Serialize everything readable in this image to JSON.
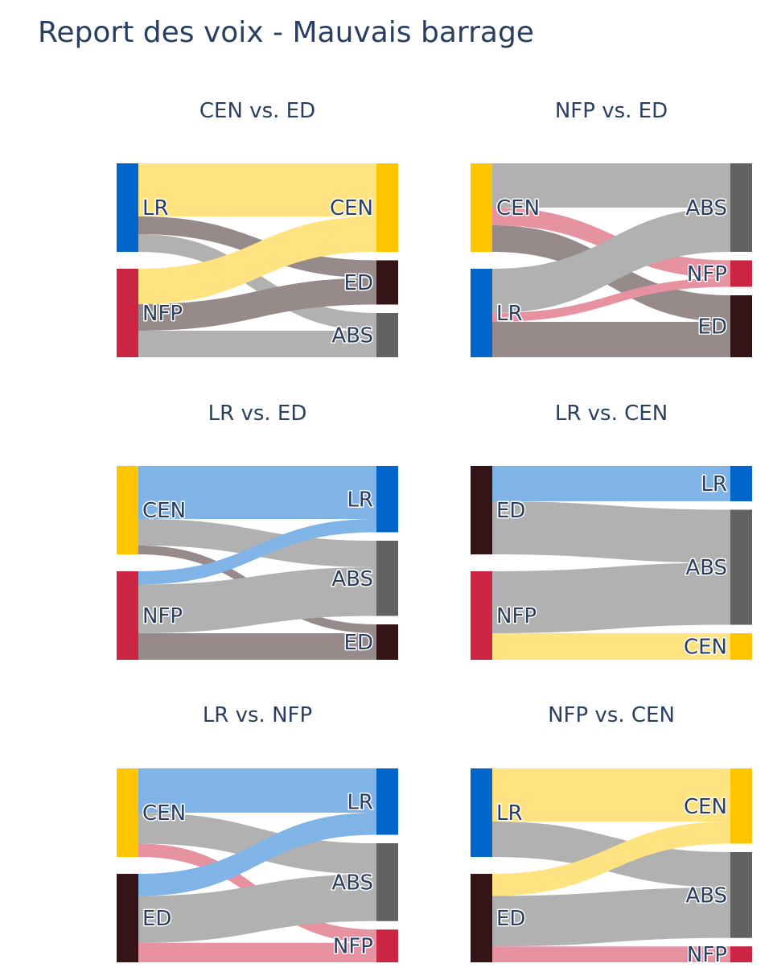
{
  "title": "Report des voix - Mauvais barrage",
  "colors": {
    "LR": "#0066CC",
    "CEN": "#FFC600",
    "NFP": "#CC2443",
    "ED": "#351417",
    "ABS": "#626262"
  },
  "link_colors": {
    "LR": "#80B3E6",
    "CEN": "#FFE380",
    "NFP": "#E692A1",
    "ED": "#968A8B",
    "ABS": "#B1B1B1"
  },
  "chart_data": [
    {
      "type": "sankey",
      "title": "CEN vs. ED",
      "source_nodes": [
        {
          "label": "LR",
          "value": 100
        },
        {
          "label": "NFP",
          "value": 100
        }
      ],
      "target_nodes": [
        {
          "label": "CEN",
          "value": 100
        },
        {
          "label": "ED",
          "value": 50
        },
        {
          "label": "ABS",
          "value": 50
        }
      ],
      "links": [
        {
          "source": "LR",
          "target": "CEN",
          "value": 60
        },
        {
          "source": "LR",
          "target": "ED",
          "value": 20
        },
        {
          "source": "LR",
          "target": "ABS",
          "value": 20
        },
        {
          "source": "NFP",
          "target": "CEN",
          "value": 40
        },
        {
          "source": "NFP",
          "target": "ED",
          "value": 30
        },
        {
          "source": "NFP",
          "target": "ABS",
          "value": 30
        }
      ]
    },
    {
      "type": "sankey",
      "title": "NFP vs. ED",
      "source_nodes": [
        {
          "label": "CEN",
          "value": 100
        },
        {
          "label": "LR",
          "value": 100
        }
      ],
      "target_nodes": [
        {
          "label": "ABS",
          "value": 100
        },
        {
          "label": "NFP",
          "value": 30
        },
        {
          "label": "ED",
          "value": 70
        }
      ],
      "links": [
        {
          "source": "CEN",
          "target": "ABS",
          "value": 50
        },
        {
          "source": "CEN",
          "target": "NFP",
          "value": 20
        },
        {
          "source": "CEN",
          "target": "ED",
          "value": 30
        },
        {
          "source": "LR",
          "target": "ABS",
          "value": 50
        },
        {
          "source": "LR",
          "target": "NFP",
          "value": 10
        },
        {
          "source": "LR",
          "target": "ED",
          "value": 40
        }
      ]
    },
    {
      "type": "sankey",
      "title": "LR vs. ED",
      "source_nodes": [
        {
          "label": "CEN",
          "value": 100
        },
        {
          "label": "NFP",
          "value": 100
        }
      ],
      "target_nodes": [
        {
          "label": "LR",
          "value": 75
        },
        {
          "label": "ABS",
          "value": 85
        },
        {
          "label": "ED",
          "value": 40
        }
      ],
      "links": [
        {
          "source": "CEN",
          "target": "LR",
          "value": 60
        },
        {
          "source": "CEN",
          "target": "ABS",
          "value": 30
        },
        {
          "source": "CEN",
          "target": "ED",
          "value": 10
        },
        {
          "source": "NFP",
          "target": "LR",
          "value": 15
        },
        {
          "source": "NFP",
          "target": "ABS",
          "value": 55
        },
        {
          "source": "NFP",
          "target": "ED",
          "value": 30
        }
      ]
    },
    {
      "type": "sankey",
      "title": "LR vs. CEN",
      "source_nodes": [
        {
          "label": "ED",
          "value": 100
        },
        {
          "label": "NFP",
          "value": 100
        }
      ],
      "target_nodes": [
        {
          "label": "LR",
          "value": 40
        },
        {
          "label": "ABS",
          "value": 130
        },
        {
          "label": "CEN",
          "value": 30
        }
      ],
      "links": [
        {
          "source": "ED",
          "target": "LR",
          "value": 40
        },
        {
          "source": "ED",
          "target": "ABS",
          "value": 60
        },
        {
          "source": "NFP",
          "target": "ABS",
          "value": 70
        },
        {
          "source": "NFP",
          "target": "CEN",
          "value": 30
        }
      ]
    },
    {
      "type": "sankey",
      "title": "LR vs. NFP",
      "source_nodes": [
        {
          "label": "CEN",
          "value": 100
        },
        {
          "label": "ED",
          "value": 100
        }
      ],
      "target_nodes": [
        {
          "label": "LR",
          "value": 75
        },
        {
          "label": "ABS",
          "value": 88
        },
        {
          "label": "NFP",
          "value": 37
        }
      ],
      "links": [
        {
          "source": "CEN",
          "target": "LR",
          "value": 50
        },
        {
          "source": "CEN",
          "target": "ABS",
          "value": 35
        },
        {
          "source": "CEN",
          "target": "NFP",
          "value": 15
        },
        {
          "source": "ED",
          "target": "LR",
          "value": 25
        },
        {
          "source": "ED",
          "target": "ABS",
          "value": 53
        },
        {
          "source": "ED",
          "target": "NFP",
          "value": 22
        }
      ]
    },
    {
      "type": "sankey",
      "title": "NFP vs. CEN",
      "source_nodes": [
        {
          "label": "LR",
          "value": 100
        },
        {
          "label": "ED",
          "value": 100
        }
      ],
      "target_nodes": [
        {
          "label": "CEN",
          "value": 85
        },
        {
          "label": "ABS",
          "value": 97
        },
        {
          "label": "NFP",
          "value": 18
        }
      ],
      "links": [
        {
          "source": "LR",
          "target": "CEN",
          "value": 60
        },
        {
          "source": "LR",
          "target": "ABS",
          "value": 40
        },
        {
          "source": "ED",
          "target": "CEN",
          "value": 25
        },
        {
          "source": "ED",
          "target": "ABS",
          "value": 57
        },
        {
          "source": "ED",
          "target": "NFP",
          "value": 18
        }
      ]
    }
  ]
}
